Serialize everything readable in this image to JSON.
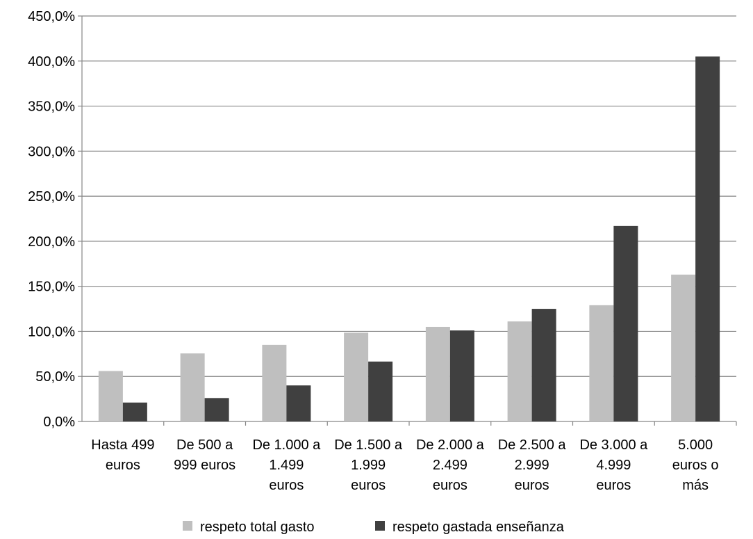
{
  "chart_data": {
    "type": "bar",
    "title": "",
    "xlabel": "",
    "ylabel": "",
    "ylim": [
      0,
      450
    ],
    "y_tick_step": 50,
    "y_tick_labels": [
      "0,0%",
      "50,0%",
      "100,0%",
      "150,0%",
      "200,0%",
      "250,0%",
      "300,0%",
      "350,0%",
      "400,0%",
      "450,0%"
    ],
    "grid": true,
    "legend_position": "bottom",
    "categories": [
      [
        "Hasta 499",
        "euros"
      ],
      [
        "De 500 a",
        "999 euros"
      ],
      [
        "De 1.000 a",
        "1.499",
        "euros"
      ],
      [
        "De 1.500 a",
        "1.999",
        "euros"
      ],
      [
        "De 2.000 a",
        "2.499",
        "euros"
      ],
      [
        "De 2.500 a",
        "2.999",
        "euros"
      ],
      [
        "De 3.000 a",
        "4.999",
        "euros"
      ],
      [
        "5.000",
        "euros o",
        "más"
      ]
    ],
    "series": [
      {
        "name": "respeto total gasto",
        "color": "#bfbfbf",
        "values": [
          56,
          75.5,
          85,
          98.5,
          105,
          111,
          129,
          163
        ]
      },
      {
        "name": "respeto gastada enseñanza",
        "color": "#404040",
        "values": [
          21,
          26,
          40,
          66.5,
          101,
          125,
          217,
          405
        ]
      }
    ]
  }
}
